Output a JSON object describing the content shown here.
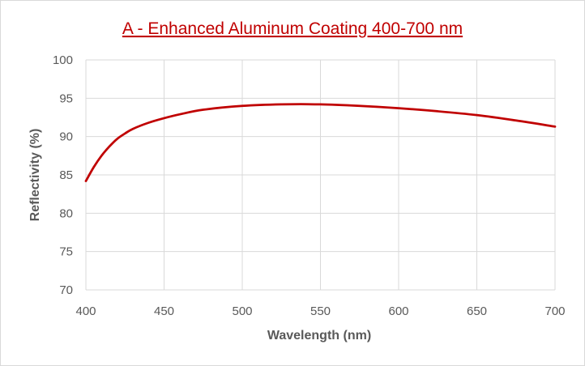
{
  "chart_data": {
    "type": "line",
    "title": "A - Enhanced Aluminum Coating 400-700 nm",
    "xlabel": "Wavelength (nm)",
    "ylabel": "Reflectivity (%)",
    "xlim": [
      400,
      700
    ],
    "ylim": [
      70,
      100
    ],
    "x_ticks": [
      400,
      450,
      500,
      550,
      600,
      650,
      700
    ],
    "y_ticks": [
      70,
      75,
      80,
      85,
      90,
      95,
      100
    ],
    "grid": true,
    "legend": "none",
    "series": [
      {
        "name": "Reflectivity",
        "color": "#c00000",
        "x": [
          400,
          405,
          410,
          415,
          420,
          425,
          430,
          440,
          450,
          460,
          475,
          500,
          525,
          550,
          575,
          600,
          625,
          650,
          675,
          700
        ],
        "y": [
          84.2,
          86.0,
          87.5,
          88.7,
          89.7,
          90.4,
          91.0,
          91.8,
          92.4,
          92.9,
          93.5,
          94.0,
          94.2,
          94.2,
          94.0,
          93.7,
          93.3,
          92.8,
          92.1,
          91.3
        ]
      }
    ]
  }
}
